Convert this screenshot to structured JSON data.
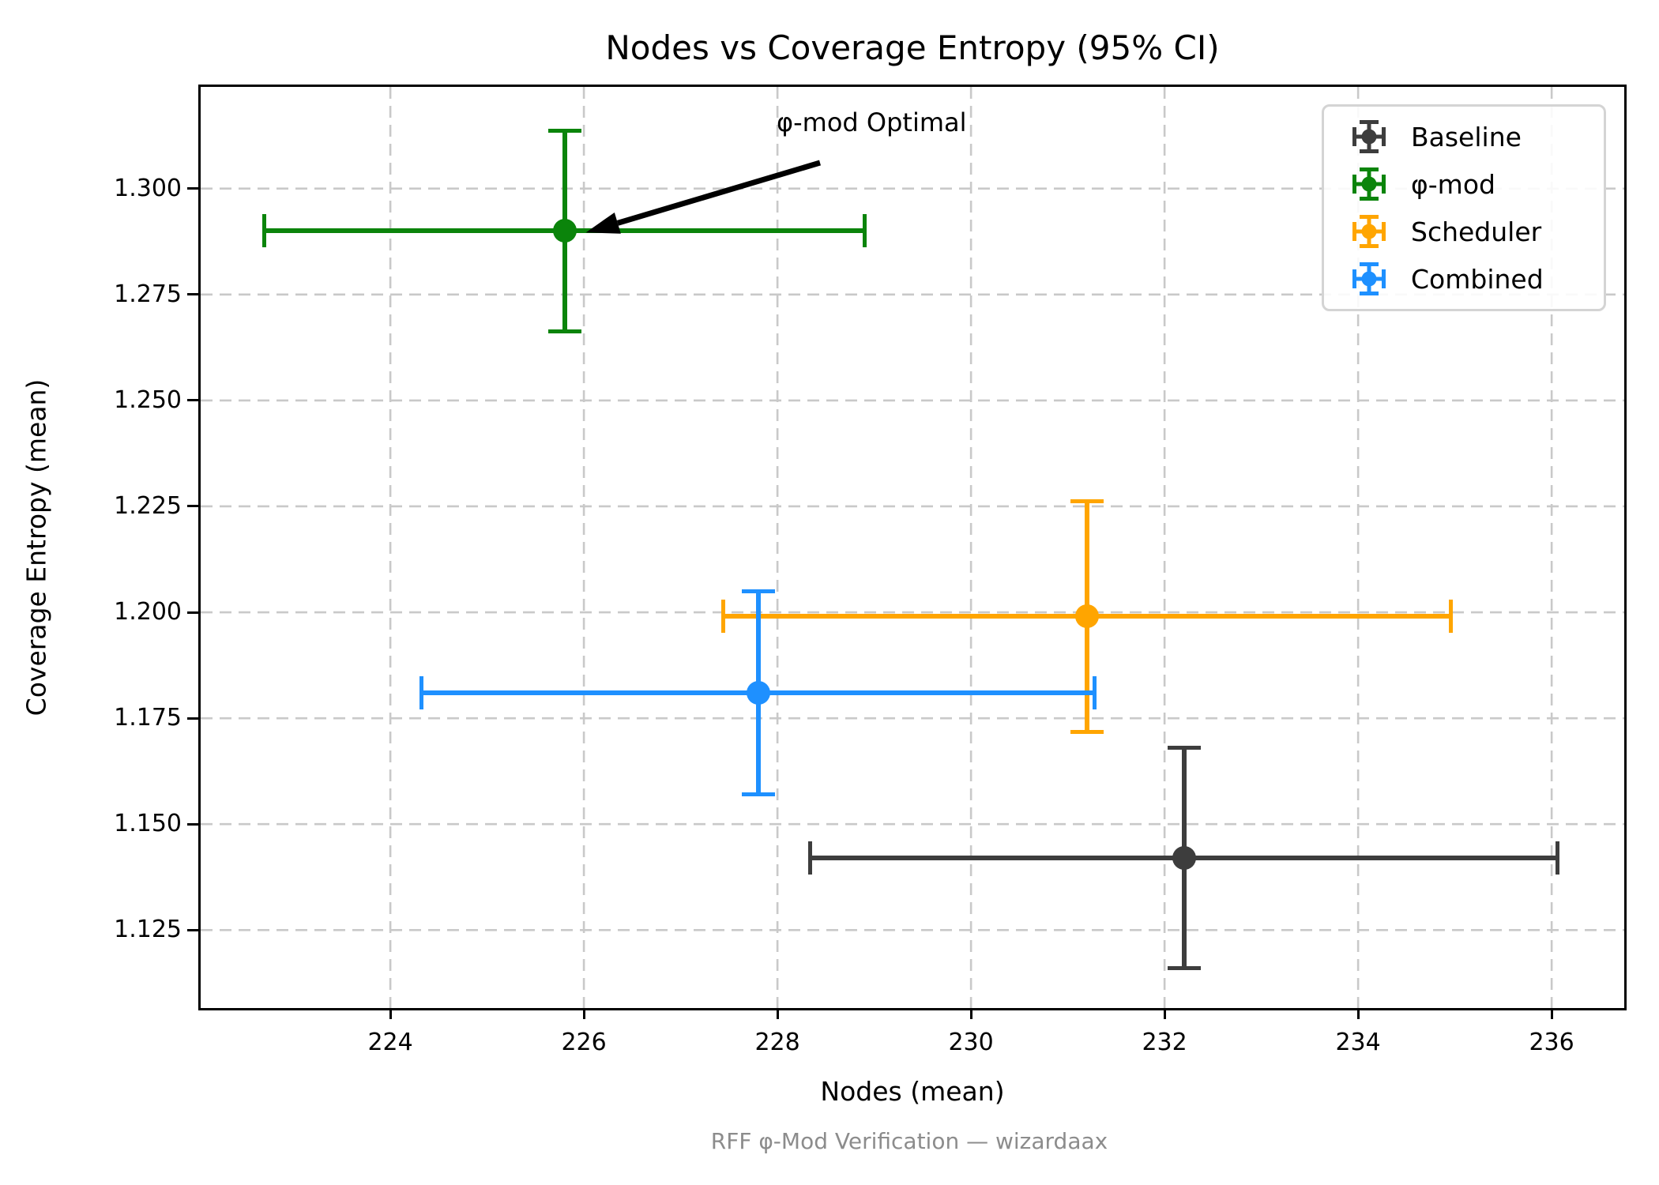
{
  "chart_data": {
    "type": "scatter",
    "title": "Nodes vs Coverage Entropy (95% CI)",
    "xlabel": "Nodes (mean)",
    "ylabel": "Coverage Entropy (mean)",
    "footer": "RFF φ-Mod Verification — wizardaax",
    "annotation": {
      "text": "φ-mod Optimal",
      "target_series": "φ-mod"
    },
    "xlim": [
      222.04,
      236.75
    ],
    "ylim": [
      1.1066,
      1.324
    ],
    "xticks": [
      224,
      226,
      228,
      230,
      232,
      234,
      236
    ],
    "yticks": [
      1.125,
      1.15,
      1.175,
      1.2,
      1.225,
      1.25,
      1.275,
      1.3
    ],
    "xtick_labels": [
      "224",
      "226",
      "228",
      "230",
      "232",
      "234",
      "236"
    ],
    "ytick_labels": [
      "1.125",
      "1.150",
      "1.175",
      "1.200",
      "1.225",
      "1.250",
      "1.275",
      "1.300"
    ],
    "grid": true,
    "grid_color": "#c9c9c9",
    "legend_position": "upper right",
    "error_bar_type": "95% confidence interval, x and y",
    "series": [
      {
        "name": "Baseline",
        "color": "#3d3d3d",
        "x": 232.2,
        "y": 1.142,
        "xerr": 3.86,
        "yerr": 0.026
      },
      {
        "name": "φ-mod",
        "color": "#0b840b",
        "x": 225.8,
        "y": 1.29,
        "xerr": 3.1,
        "yerr": 0.0237
      },
      {
        "name": "Scheduler",
        "color": "#ffa500",
        "x": 231.2,
        "y": 1.199,
        "xerr": 3.76,
        "yerr": 0.0273
      },
      {
        "name": "Combined",
        "color": "#1e90ff",
        "x": 227.8,
        "y": 1.181,
        "xerr": 3.48,
        "yerr": 0.024
      }
    ]
  }
}
